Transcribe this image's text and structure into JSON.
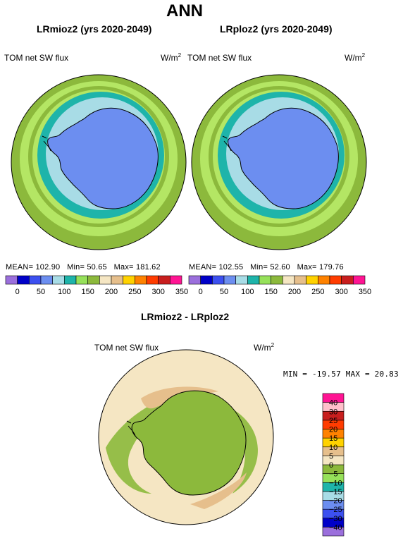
{
  "page": {
    "title": "ANN"
  },
  "panels": {
    "left": {
      "subtitle": "LRmioz2 (yrs 2020-2049)",
      "variable": "TOM net SW flux",
      "units": "W/m",
      "units_sup": "2",
      "mean_label": "MEAN=",
      "mean": "102.90",
      "min_label": "Min=",
      "min": "50.65",
      "max_label": "Max=",
      "max": "181.62"
    },
    "right": {
      "subtitle": "LRploz2 (yrs 2020-2049)",
      "variable": "TOM net SW flux",
      "units": "W/m",
      "units_sup": "2",
      "mean_label": "MEAN=",
      "mean": "102.55",
      "min_label": "Min=",
      "min": "52.60",
      "max_label": "Max=",
      "max": "179.76"
    },
    "diff": {
      "subtitle": "LRmioz2 - LRploz2",
      "variable": "TOM net SW flux",
      "units": "W/m",
      "units_sup": "2",
      "min_label": "MIN =",
      "min": "-19.57",
      "max_label": "MAX =",
      "max": "20.83"
    }
  },
  "colorbar_abs": {
    "colors": [
      "#9b6fdc",
      "#0000c8",
      "#3c50f0",
      "#6c8ef0",
      "#a8dce6",
      "#1eb4aa",
      "#96e15a",
      "#8cb93c",
      "#f5e6c3",
      "#e6bf8c",
      "#ffd200",
      "#ff8200",
      "#ff3c00",
      "#c81e1e",
      "#ff1493"
    ],
    "tick_labels": [
      "0",
      "50",
      "100",
      "150",
      "200",
      "250",
      "300",
      "350"
    ]
  },
  "colorbar_diff": {
    "colors": [
      "#9b6fdc",
      "#0000c8",
      "#3c50f0",
      "#6c8ef0",
      "#a8dce6",
      "#1eb4aa",
      "#96e15a",
      "#8cb93c",
      "#f5e6c3",
      "#e6bf8c",
      "#ffd200",
      "#ff8200",
      "#ff3c00",
      "#c81e1e",
      "#ffc0cb",
      "#ff1493"
    ],
    "tick_labels": [
      "40",
      "30",
      "25",
      "20",
      "15",
      "10",
      "5",
      "0",
      "-5",
      "-10",
      "-15",
      "-20",
      "-25",
      "-30",
      "-40"
    ]
  },
  "map_colors": {
    "ocean_outer": "#8cb93c",
    "ring_light_green": "#b4e664",
    "ring_teal": "#1eb4aa",
    "ring_light_blue": "#a8dce6",
    "antarctica": "#6c8ef0",
    "diff_background": "#f5e6c3",
    "diff_land": "#8cb93c",
    "diff_tan": "#e6bf8c"
  },
  "chart_data": [
    {
      "type": "heatmap",
      "title": "LRmioz2 (yrs 2020-2049)",
      "variable": "TOM net SW flux",
      "units": "W/m2",
      "stats": {
        "mean": 102.9,
        "min": 50.65,
        "max": 181.62
      },
      "colorbar_ticks": [
        0,
        50,
        100,
        150,
        200,
        250,
        300,
        350
      ]
    },
    {
      "type": "heatmap",
      "title": "LRploz2 (yrs 2020-2049)",
      "variable": "TOM net SW flux",
      "units": "W/m2",
      "stats": {
        "mean": 102.55,
        "min": 52.6,
        "max": 179.76
      },
      "colorbar_ticks": [
        0,
        50,
        100,
        150,
        200,
        250,
        300,
        350
      ]
    },
    {
      "type": "heatmap",
      "title": "LRmioz2 - LRploz2",
      "variable": "TOM net SW flux",
      "units": "W/m2",
      "stats": {
        "min": -19.57,
        "max": 20.83
      },
      "colorbar_ticks": [
        40,
        30,
        25,
        20,
        15,
        10,
        5,
        0,
        -5,
        -10,
        -15,
        -20,
        -25,
        -30,
        -40
      ]
    }
  ]
}
